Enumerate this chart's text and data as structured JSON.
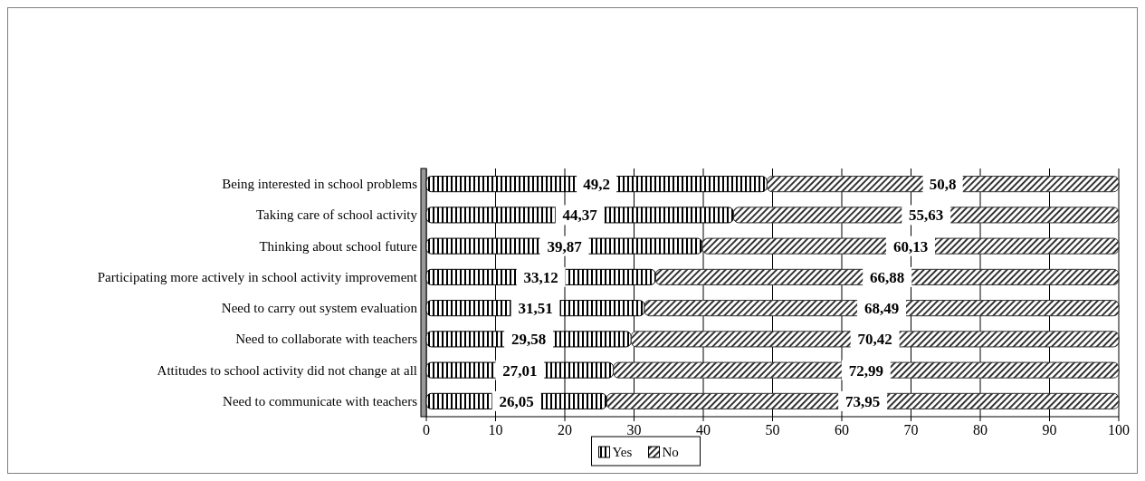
{
  "chart_data": {
    "type": "bar",
    "orientation": "horizontal",
    "stacked": true,
    "categories": [
      "Being interested in school problems",
      "Taking care of school activity",
      "Thinking about school future",
      "Participating more actively in school activity improvement",
      "Need to carry out system evaluation",
      "Need to collaborate with teachers",
      "Attitudes to school activity did not change at all",
      "Need to communicate with teachers"
    ],
    "series": [
      {
        "name": "Yes",
        "color": "#000000",
        "values": [
          49.2,
          44.37,
          39.87,
          33.12,
          31.51,
          29.58,
          27.01,
          26.05
        ],
        "value_labels": [
          "49,2",
          "44,37",
          "39,87",
          "33,12",
          "31,51",
          "29,58",
          "27,01",
          "26,05"
        ]
      },
      {
        "name": "No",
        "color": "#333333",
        "values": [
          50.8,
          55.63,
          60.13,
          66.88,
          68.49,
          70.42,
          72.99,
          73.95
        ],
        "value_labels": [
          "50,8",
          "55,63",
          "60,13",
          "66,88",
          "68,49",
          "70,42",
          "72,99",
          "73,95"
        ]
      }
    ],
    "xlim": [
      0,
      100
    ],
    "xticks": [
      0,
      10,
      20,
      30,
      40,
      50,
      60,
      70,
      80,
      90,
      100
    ],
    "grid": "x",
    "legend": "bottom"
  }
}
